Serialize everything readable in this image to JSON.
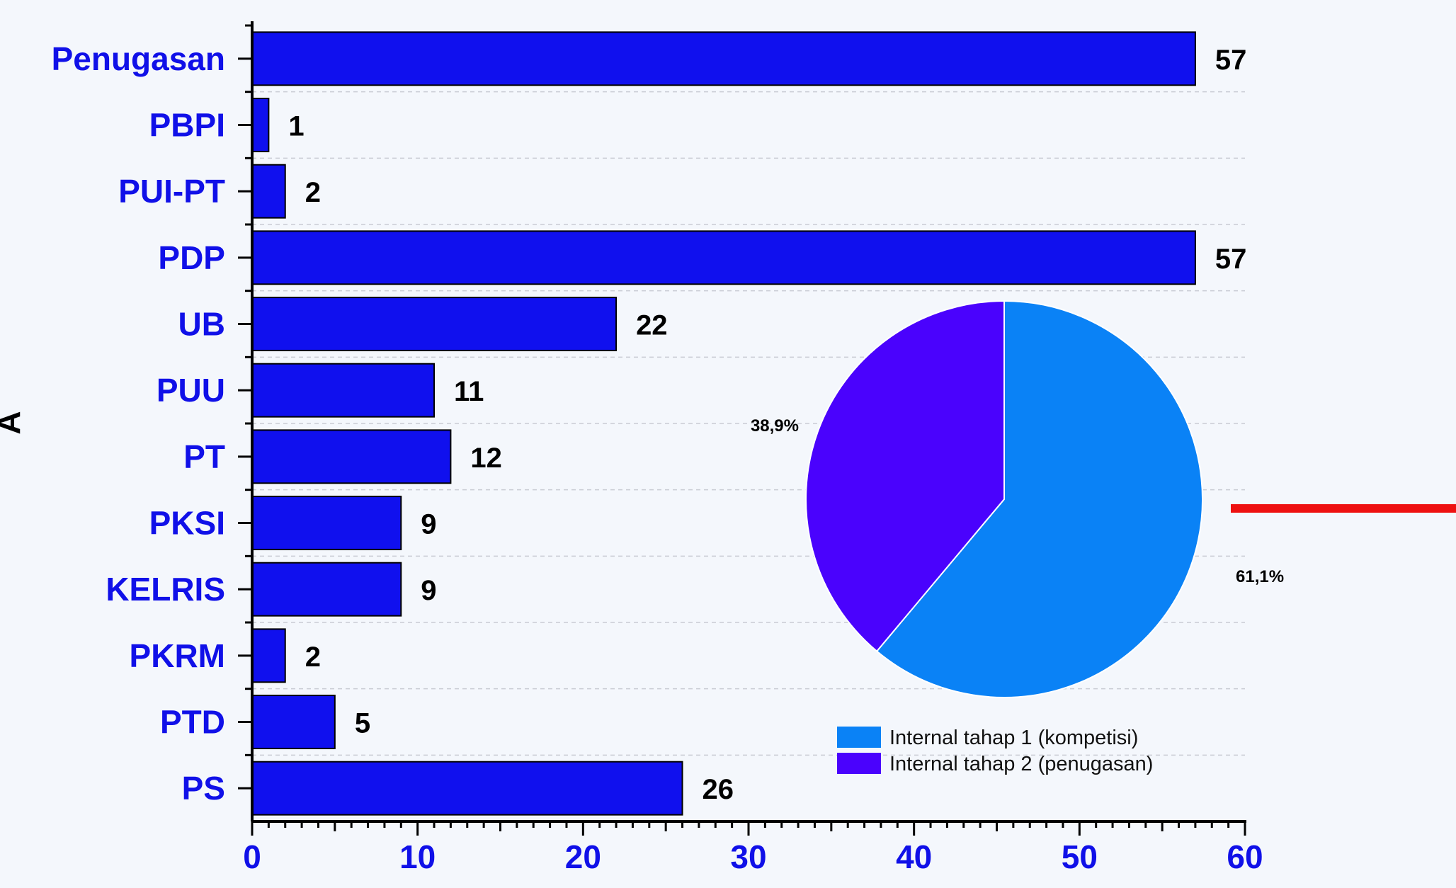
{
  "chart_data": [
    {
      "type": "bar",
      "orientation": "horizontal",
      "categories": [
        "Penugasan",
        "PBPI",
        "PUI-PT",
        "PDP",
        "UB",
        "PUU",
        "PT",
        "PKSI",
        "KELRIS",
        "PKRM",
        "PTD",
        "PS"
      ],
      "values": [
        57,
        1,
        2,
        57,
        22,
        11,
        12,
        9,
        9,
        2,
        5,
        26
      ],
      "value_labels": [
        "57",
        "1",
        "2",
        "57",
        "22",
        "11",
        "12",
        "9",
        "9",
        "2",
        "5",
        "26"
      ],
      "xlim": [
        0,
        60
      ],
      "xticks": [
        0,
        10,
        20,
        30,
        40,
        50,
        60
      ],
      "xtick_labels": [
        "0",
        "10",
        "20",
        "30",
        "40",
        "50",
        "60"
      ],
      "ylabel_partial": "A",
      "grid": "horizontal dashed",
      "bar_color": "#1010ee",
      "label_color": "#1010e8"
    },
    {
      "type": "pie",
      "slices": [
        {
          "name": "Internal tahap 1 (kompetisi)",
          "value": 61.1,
          "label": "61,1%",
          "color": "#0a82f6"
        },
        {
          "name": "Internal tahap 2 (penugasan)",
          "value": 38.9,
          "label": "38,9%",
          "color": "#4a02fd"
        }
      ],
      "legend_position": "bottom"
    }
  ],
  "decoration": {
    "red_line_color": "#ee1111"
  }
}
